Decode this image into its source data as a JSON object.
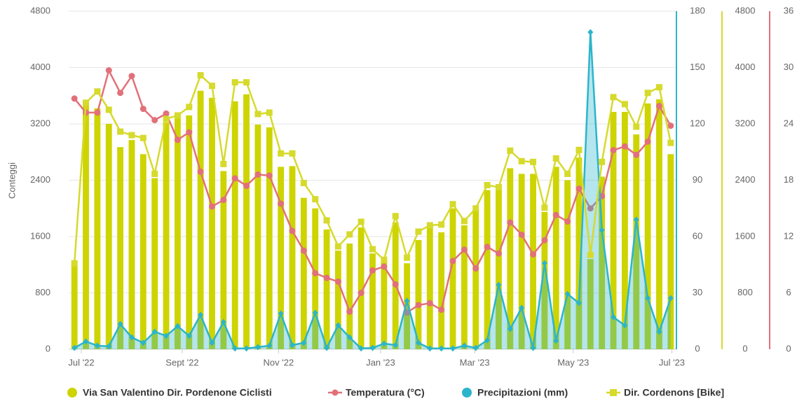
{
  "chart_data": {
    "type": "combo",
    "y_label": "Conteggi",
    "categories": [
      null,
      null,
      null,
      null,
      null,
      null,
      null,
      null,
      null,
      null,
      null,
      null,
      null,
      null,
      null,
      null,
      null,
      null,
      null,
      null,
      null,
      null,
      null,
      null,
      null,
      null,
      null,
      null,
      null,
      null,
      null,
      null,
      null,
      null,
      null,
      null,
      null,
      null,
      null,
      null,
      null,
      null,
      null,
      null,
      null,
      null,
      null,
      null,
      null,
      null,
      null,
      null,
      null
    ],
    "xticks": [
      {
        "value": 0.6,
        "label": "Jul '22"
      },
      {
        "value": 9.4,
        "label": "Sept '22"
      },
      {
        "value": 17.8,
        "label": "Nov '22"
      },
      {
        "value": 26.7,
        "label": "Jan '23"
      },
      {
        "value": 34.9,
        "label": "Mar '23"
      },
      {
        "value": 43.5,
        "label": "May '23"
      },
      {
        "value": 52.1,
        "label": "Jul '23"
      }
    ],
    "ylim": [
      0,
      4800
    ],
    "yticks": [
      0,
      800,
      1600,
      2400,
      3200,
      4000,
      4800
    ],
    "y2lim": [
      0,
      180
    ],
    "y2ticks": [
      0,
      30,
      60,
      90,
      120,
      150,
      180
    ],
    "y3lim": [
      0,
      4800
    ],
    "y3ticks": [
      0,
      800,
      1600,
      2400,
      3200,
      4000,
      4800
    ],
    "y4lim": [
      0,
      36
    ],
    "y4ticks": [
      0,
      6,
      12,
      18,
      24,
      30,
      36
    ],
    "grid": true,
    "series": [
      {
        "name": "Via San Valentino Dir. Pordenone Ciclisti",
        "type": "bar",
        "axis": "y",
        "color": "#cdd400",
        "values": [
          1200,
          3470,
          3420,
          3200,
          2870,
          2970,
          2770,
          2430,
          3220,
          3320,
          3320,
          3670,
          3570,
          2530,
          3520,
          3620,
          3190,
          3150,
          2590,
          2600,
          2150,
          2000,
          1700,
          1400,
          1500,
          1730,
          1360,
          1260,
          1800,
          1220,
          1550,
          1750,
          1660,
          2000,
          1760,
          1980,
          2260,
          2260,
          2570,
          2490,
          2490,
          1950,
          2590,
          2400,
          2720,
          1280,
          2450,
          3370,
          3370,
          3050,
          3490,
          3550,
          2770
        ]
      },
      {
        "name": "Temperatura (°C)",
        "type": "line",
        "marker": "circle",
        "axis": "y4",
        "color": "#e2707a",
        "values": [
          26.7,
          25.2,
          25.2,
          29.7,
          27.3,
          29.1,
          25.6,
          24.4,
          25.1,
          22.3,
          23.1,
          18.9,
          15.2,
          15.9,
          18.2,
          17.4,
          18.6,
          18.5,
          15.5,
          12.6,
          10.5,
          8.1,
          7.6,
          7.2,
          4.0,
          6.0,
          8.4,
          8.8,
          6.9,
          3.9,
          4.7,
          4.9,
          4.2,
          9.4,
          10.6,
          8.6,
          10.9,
          10.2,
          13.5,
          12.2,
          10.1,
          11.6,
          14.3,
          13.6,
          17.1,
          15.0,
          16.3,
          21.2,
          21.6,
          20.7,
          22.1,
          25.9,
          23.8
        ]
      },
      {
        "name": "Precipitazioni (mm)",
        "type": "area",
        "marker": "diamond",
        "axis": "y2",
        "color": "#2bb5cb",
        "values": [
          0.7,
          4.1,
          1.9,
          1.5,
          13.4,
          6.3,
          3.4,
          9.3,
          7.1,
          12.3,
          7.1,
          18.3,
          3.4,
          14.5,
          0.4,
          0.4,
          1.1,
          1.9,
          19.0,
          2.2,
          3.4,
          19.4,
          0.7,
          12.7,
          6.3,
          0.4,
          0.7,
          3.0,
          2.2,
          25.7,
          3.4,
          0.4,
          0.4,
          0.4,
          1.9,
          0.7,
          4.8,
          34.3,
          10.8,
          22.0,
          0.7,
          45.8,
          4.5,
          29.4,
          24.6,
          168.8,
          63.4,
          17.1,
          12.7,
          69.0,
          27.2,
          9.3,
          27.2
        ]
      },
      {
        "name": "Dir. Cordenons [Bike]",
        "type": "line",
        "marker": "square",
        "axis": "y3",
        "color": "#d6da2c",
        "values": [
          1220,
          3500,
          3660,
          3400,
          3090,
          3040,
          3000,
          2490,
          3270,
          3320,
          3440,
          3890,
          3740,
          2630,
          3790,
          3790,
          3340,
          3360,
          2780,
          2780,
          2360,
          2130,
          1830,
          1460,
          1630,
          1810,
          1420,
          1270,
          1890,
          1300,
          1670,
          1760,
          1770,
          2060,
          1820,
          2000,
          2330,
          2300,
          2820,
          2670,
          2660,
          2010,
          2710,
          2490,
          2830,
          1340,
          2660,
          3580,
          3480,
          3160,
          3640,
          3720,
          2930
        ]
      }
    ]
  }
}
